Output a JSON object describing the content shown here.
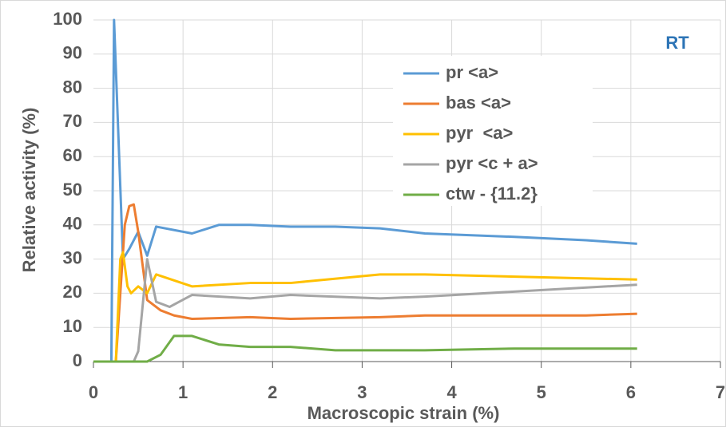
{
  "chart_data": {
    "type": "line",
    "annotation": "RT",
    "x_label": "Macroscopic strain (%)",
    "y_label": "Relative activity (%)",
    "xlim": [
      0,
      7
    ],
    "xticks": [
      0,
      1,
      2,
      3,
      4,
      5,
      6,
      7
    ],
    "ylim": [
      0,
      100
    ],
    "yticks": [
      0,
      10,
      20,
      30,
      40,
      50,
      60,
      70,
      80,
      90,
      100
    ],
    "grid": true,
    "legend": "upper right",
    "series": [
      {
        "name": "pr <a>",
        "color": "#5b9bd5",
        "x": [
          0,
          0.2,
          0.23,
          0.33,
          0.4,
          0.5,
          0.6,
          0.7,
          1.1,
          1.4,
          1.75,
          2.2,
          2.7,
          3.2,
          3.7,
          4.7,
          5.5,
          6.07
        ],
        "values": [
          0,
          0,
          100,
          30,
          33,
          38,
          31,
          39.5,
          37.5,
          40,
          40,
          39.5,
          39.5,
          39,
          37.5,
          36.5,
          35.5,
          34.5
        ]
      },
      {
        "name": "bas <a>",
        "color": "#ed7d31",
        "x": [
          0,
          0.25,
          0.35,
          0.4,
          0.45,
          0.5,
          0.6,
          0.75,
          0.9,
          1.1,
          1.75,
          2.2,
          3.2,
          3.7,
          5.5,
          6.07
        ],
        "values": [
          0,
          0,
          40,
          45.5,
          46,
          38,
          18,
          15,
          13.5,
          12.5,
          13,
          12.5,
          13,
          13.5,
          13.5,
          14
        ]
      },
      {
        "name": "pyr  <a>",
        "color": "#ffc000",
        "x": [
          0,
          0.25,
          0.3,
          0.33,
          0.38,
          0.42,
          0.5,
          0.6,
          0.7,
          1.1,
          1.75,
          2.2,
          3.2,
          3.7,
          6.07
        ],
        "values": [
          0,
          0,
          30,
          32,
          22,
          20,
          22,
          20,
          25.5,
          22,
          23,
          23,
          25.5,
          25.5,
          24
        ]
      },
      {
        "name": "pyr <c + a>",
        "color": "#a5a5a5",
        "x": [
          0,
          0.45,
          0.5,
          0.6,
          0.7,
          0.85,
          1.1,
          1.75,
          2.2,
          3.2,
          3.7,
          6.07
        ],
        "values": [
          0,
          0,
          3,
          30,
          17.5,
          16,
          19.5,
          18.5,
          19.5,
          18.5,
          19,
          22.5
        ]
      },
      {
        "name": "ctw - {11.2}",
        "color": "#70ad47",
        "x": [
          0,
          0.6,
          0.75,
          0.9,
          1.1,
          1.4,
          1.75,
          2.2,
          2.7,
          3.7,
          4.7,
          6.07
        ],
        "values": [
          0,
          0,
          2,
          7.5,
          7.5,
          5,
          4.3,
          4.3,
          3.3,
          3.3,
          3.8,
          3.8
        ]
      }
    ]
  }
}
